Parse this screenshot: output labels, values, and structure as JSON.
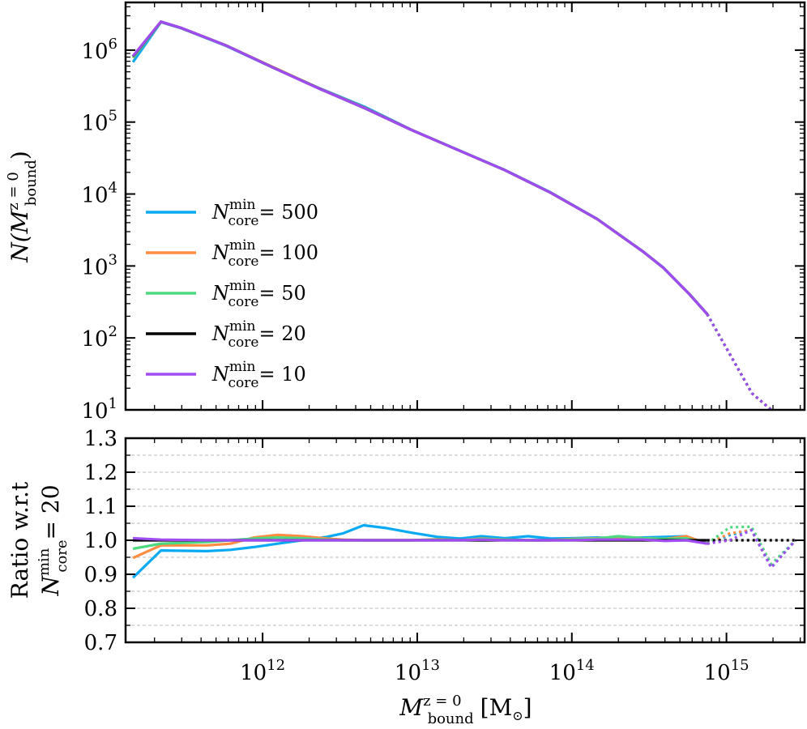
{
  "chart_data": [
    {
      "type": "line",
      "xscale": "log",
      "yscale": "log",
      "xlim": [
        130000000000.0,
        3200000000000000.0
      ],
      "ylim": [
        10,
        4600000.0
      ],
      "ylabel": {
        "main": "N(M",
        "sup": "z = 0",
        "sub": "bound",
        "close": ")"
      },
      "yticks": [
        {
          "value": 10,
          "base": "10",
          "exp": "1"
        },
        {
          "value": 100,
          "base": "10",
          "exp": "2"
        },
        {
          "value": 1000,
          "base": "10",
          "exp": "3"
        },
        {
          "value": 10000,
          "base": "10",
          "exp": "4"
        },
        {
          "value": 100000,
          "base": "10",
          "exp": "5"
        },
        {
          "value": 1000000,
          "base": "10",
          "exp": "6"
        }
      ],
      "legend": {
        "placement": "center-left"
      },
      "line_style_note": "solid below 8e14, dotted above",
      "x": [
        145000000000.0,
        220000000000.0,
        300000000000.0,
        580000000000.0,
        1150000000000.0,
        2300000000000.0,
        4600000000000.0,
        9200000000000.0,
        18400000000000.0,
        37000000000000.0,
        73000000000000.0,
        146000000000000.0,
        290000000000000.0,
        390000000000000.0,
        580000000000000.0,
        750000000000000.0,
        1460000000000000.0,
        1950000000000000.0
      ],
      "series": [
        {
          "name": "N^min_core = 500",
          "label_base": "N",
          "label_sup": "min",
          "label_sub": "core",
          "label_value": "= 500",
          "color": "#0aaaf2",
          "values": [
            680000,
            2450000,
            2000000,
            1150000,
            580000,
            300000,
            162000,
            78000,
            41000,
            21500,
            10500,
            4500,
            1580,
            950,
            400,
            215,
            17,
            10
          ]
        },
        {
          "name": "N^min_core = 100",
          "label_base": "N",
          "label_sup": "min",
          "label_sub": "core",
          "label_value": "= 100",
          "color": "#ff8c40",
          "values": [
            780000,
            2460000,
            2010000,
            1160000,
            590000,
            298000,
            157000,
            77500,
            40800,
            21400,
            10400,
            4480,
            1570,
            945,
            398,
            214,
            17,
            10
          ]
        },
        {
          "name": "N^min_core = 50",
          "label_base": "N",
          "label_sup": "min",
          "label_sub": "core",
          "label_value": "= 50",
          "color": "#4cd97f",
          "values": [
            790000,
            2460000,
            2010000,
            1160000,
            585000,
            296000,
            155000,
            77500,
            40800,
            21400,
            10400,
            4480,
            1570,
            945,
            398,
            214,
            17,
            10
          ]
        },
        {
          "name": "N^min_core = 20",
          "label_base": "N",
          "label_sup": "min",
          "label_sub": "core",
          "label_value": "= 20",
          "color": "#000000",
          "values": [
            820000,
            2480000,
            2020000,
            1160000,
            582000,
            295000,
            155000,
            77500,
            40800,
            21400,
            10400,
            4480,
            1570,
            945,
            398,
            214,
            17,
            10
          ]
        },
        {
          "name": "N^min_core = 10",
          "label_base": "N",
          "label_sup": "min",
          "label_sub": "core",
          "label_value": "= 10",
          "color": "#a04cf2",
          "values": [
            830000,
            2480000,
            2020000,
            1160000,
            582000,
            295000,
            155000,
            77500,
            40800,
            21400,
            10400,
            4480,
            1570,
            945,
            398,
            214,
            17,
            10
          ]
        }
      ]
    },
    {
      "type": "line",
      "xscale": "log",
      "yscale": "linear",
      "xlim": [
        130000000000.0,
        3200000000000000.0
      ],
      "ylim": [
        0.7,
        1.3
      ],
      "grid": "horizontal dashed",
      "ylabel_line1": "Ratio w.r.t",
      "ylabel_line2": {
        "base": "N",
        "sup": "min",
        "sub": "core",
        "value": "= 20"
      },
      "xlabel": {
        "main": "M",
        "sup": "z = 0",
        "sub": "bound",
        "unit": "[M",
        "unit_sub": "⊙",
        "unit_close": "]"
      },
      "xticks": [
        {
          "value": 1000000000000.0,
          "base": "10",
          "exp": "12"
        },
        {
          "value": 10000000000000.0,
          "base": "10",
          "exp": "13"
        },
        {
          "value": 100000000000000.0,
          "base": "10",
          "exp": "14"
        },
        {
          "value": 1000000000000000.0,
          "base": "10",
          "exp": "15"
        }
      ],
      "yticks": [
        "0.7",
        "0.8",
        "0.9",
        "1.0",
        "1.1",
        "1.2",
        "1.3"
      ],
      "solid_cutoff": 800000000000000.0,
      "x": [
        145000000000.0,
        220000000000.0,
        440000000000.0,
        620000000000.0,
        880000000000.0,
        1250000000000.0,
        1800000000000.0,
        2600000000000.0,
        3300000000000.0,
        4500000000000.0,
        6300000000000.0,
        9300000000000.0,
        13500000000000.0,
        19000000000000.0,
        26000000000000.0,
        37000000000000.0,
        52000000000000.0,
        73000000000000.0,
        100000000000000.0,
        146000000000000.0,
        200000000000000.0,
        290000000000000.0,
        400000000000000.0,
        550000000000000.0,
        750000000000000.0,
        1050000000000000.0,
        1450000000000000.0,
        1950000000000000.0,
        2800000000000000.0
      ],
      "series": [
        {
          "name": "500",
          "color": "#0aaaf2",
          "values": [
            0.89,
            0.97,
            0.968,
            0.972,
            0.98,
            0.99,
            1.0,
            1.01,
            1.02,
            1.044,
            1.036,
            1.022,
            1.01,
            1.005,
            1.012,
            1.006,
            1.012,
            1.005,
            1.006,
            1.008,
            1.006,
            1.008,
            1.01,
            1.012,
            0.99,
            1.015,
            1.03,
            0.92,
            1.0
          ]
        },
        {
          "name": "100",
          "color": "#ff8c40",
          "values": [
            0.948,
            0.985,
            0.985,
            0.99,
            1.008,
            1.016,
            1.012,
            1.005,
            1.002,
            1.0,
            1.0,
            1.0,
            1.003,
            1.0,
            1.005,
            1.002,
            1.0,
            1.0,
            1.004,
            1.006,
            1.01,
            1.006,
            1.004,
            1.012,
            0.99,
            1.02,
            1.03,
            0.92,
            1.0
          ]
        },
        {
          "name": "50",
          "color": "#4cd97f",
          "values": [
            0.975,
            0.99,
            0.995,
            1.0,
            1.005,
            1.008,
            1.006,
            1.002,
            1.0,
            1.0,
            1.0,
            1.0,
            1.002,
            1.0,
            1.004,
            1.002,
            1.0,
            1.0,
            1.003,
            1.005,
            1.012,
            1.006,
            1.004,
            1.006,
            0.99,
            1.038,
            1.04,
            0.93,
            1.0
          ]
        },
        {
          "name": "20",
          "color": "#000000",
          "values": [
            1.0,
            1.0,
            1.0,
            1.0,
            1.0,
            1.0,
            1.0,
            1.0,
            1.0,
            1.0,
            1.0,
            1.0,
            1.0,
            1.0,
            1.0,
            1.0,
            1.0,
            1.0,
            1.0,
            1.0,
            1.0,
            1.0,
            1.0,
            1.0,
            1.0,
            1.0,
            1.0,
            1.0,
            1.0
          ]
        },
        {
          "name": "10",
          "color": "#a04cf2",
          "values": [
            1.006,
            1.002,
            1.0,
            1.0,
            1.0,
            1.0,
            1.0,
            1.0,
            1.0,
            1.0,
            1.0,
            1.0,
            1.0,
            1.0,
            1.002,
            1.0,
            1.0,
            1.0,
            1.0,
            1.002,
            1.002,
            1.002,
            0.998,
            1.0,
            0.99,
            1.0,
            1.03,
            0.92,
            1.0
          ]
        }
      ]
    }
  ]
}
